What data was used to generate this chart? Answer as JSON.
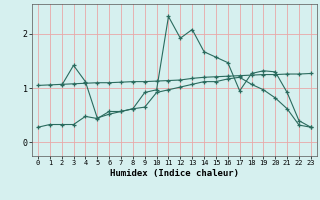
{
  "xlabel": "Humidex (Indice chaleur)",
  "background_color": "#d6f0ef",
  "grid_color": "#e8a8a8",
  "line_color": "#2a6b5e",
  "xlim": [
    -0.5,
    23.5
  ],
  "ylim": [
    -0.25,
    2.55
  ],
  "xticks": [
    0,
    1,
    2,
    3,
    4,
    5,
    6,
    7,
    8,
    9,
    10,
    11,
    12,
    13,
    14,
    15,
    16,
    17,
    18,
    19,
    20,
    21,
    22,
    23
  ],
  "yticks": [
    0,
    1,
    2
  ],
  "line1_x": [
    0,
    1,
    2,
    3,
    4,
    5,
    6,
    7,
    8,
    9,
    10,
    11,
    12,
    13,
    14,
    15,
    16,
    17,
    18,
    19,
    20,
    21,
    22,
    23
  ],
  "line1_y": [
    0.28,
    0.33,
    0.33,
    0.33,
    0.48,
    0.44,
    0.57,
    0.57,
    0.62,
    0.65,
    0.92,
    0.97,
    1.02,
    1.07,
    1.12,
    1.12,
    1.17,
    1.2,
    1.07,
    0.97,
    0.82,
    0.62,
    0.32,
    0.28
  ],
  "line2_x": [
    0,
    1,
    2,
    3,
    4,
    5,
    6,
    7,
    8,
    9,
    10,
    11,
    12,
    13,
    14,
    15,
    16,
    17,
    18,
    19,
    20,
    21,
    22,
    23
  ],
  "line2_y": [
    1.05,
    1.06,
    1.07,
    1.08,
    1.09,
    1.1,
    1.1,
    1.11,
    1.12,
    1.12,
    1.13,
    1.14,
    1.15,
    1.18,
    1.2,
    1.21,
    1.22,
    1.23,
    1.24,
    1.25,
    1.25,
    1.26,
    1.26,
    1.27
  ],
  "line3_x": [
    2,
    3,
    4,
    5,
    6,
    7,
    8,
    9,
    10,
    11,
    12,
    13,
    14,
    15,
    16,
    17,
    18,
    19,
    20,
    21,
    22,
    23
  ],
  "line3_y": [
    1.05,
    1.42,
    1.12,
    0.45,
    0.52,
    0.57,
    0.62,
    0.92,
    0.97,
    2.32,
    1.92,
    2.08,
    1.67,
    1.57,
    1.47,
    0.95,
    1.27,
    1.32,
    1.3,
    0.92,
    0.4,
    0.28
  ]
}
